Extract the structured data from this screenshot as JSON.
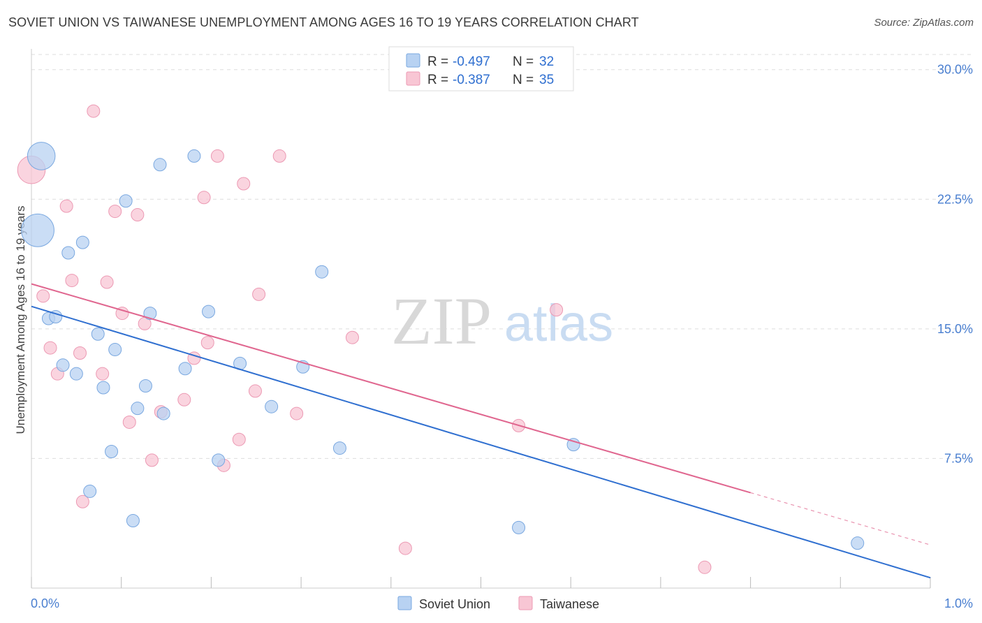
{
  "title": "SOVIET UNION VS TAIWANESE UNEMPLOYMENT AMONG AGES 16 TO 19 YEARS CORRELATION CHART",
  "source": "Source: ZipAtlas.com",
  "watermark": {
    "zip": "ZIP",
    "atlas": "atlas"
  },
  "legend": {
    "r_label": "R =",
    "n_label": "N =",
    "entries": [
      {
        "r": "-0.497",
        "n": "32"
      },
      {
        "r": "-0.387",
        "n": "35"
      }
    ]
  },
  "colors": {
    "soviet_fill": "#b8d2f2",
    "soviet_stroke": "#7aa8e0",
    "soviet_line": "#2f6fd0",
    "taiwan_fill": "#f8c6d4",
    "taiwan_stroke": "#ec99b3",
    "taiwan_line": "#e0668f",
    "grid": "#dddddd",
    "axis_text": "#4a7fd0"
  },
  "chart_data": {
    "type": "scatter",
    "title": "SOVIET UNION VS TAIWANESE UNEMPLOYMENT AMONG AGES 16 TO 19 YEARS CORRELATION CHART",
    "xlabel": "",
    "ylabel": "Unemployment Among Ages 16 to 19 years",
    "xlim": [
      0,
      1.0
    ],
    "ylim": [
      0,
      31.2
    ],
    "x_tick_labels": [
      "0.0%",
      "1.0%"
    ],
    "y_ticks": [
      7.5,
      15.0,
      22.5,
      30.0
    ],
    "y_tick_labels": [
      "7.5%",
      "15.0%",
      "22.5%",
      "30.0%"
    ],
    "series": [
      {
        "name": "Soviet Union",
        "r": -0.497,
        "n": 32,
        "trend": {
          "x0": 0.0,
          "y0": 16.3,
          "x1": 1.0,
          "y1": 0.6,
          "dashed_from": null
        },
        "points": [
          {
            "x": 0.011,
            "y": 25.0,
            "s": 2.2
          },
          {
            "x": 0.007,
            "y": 20.7,
            "s": 2.6
          },
          {
            "x": 0.143,
            "y": 24.5,
            "s": 1
          },
          {
            "x": 0.181,
            "y": 25.0,
            "s": 1
          },
          {
            "x": 0.105,
            "y": 22.4,
            "s": 1
          },
          {
            "x": 0.057,
            "y": 20.0,
            "s": 1
          },
          {
            "x": 0.041,
            "y": 19.4,
            "s": 1
          },
          {
            "x": 0.323,
            "y": 18.3,
            "s": 1
          },
          {
            "x": 0.019,
            "y": 15.6,
            "s": 1
          },
          {
            "x": 0.027,
            "y": 15.7,
            "s": 1
          },
          {
            "x": 0.132,
            "y": 15.9,
            "s": 1
          },
          {
            "x": 0.197,
            "y": 16.0,
            "s": 1
          },
          {
            "x": 0.074,
            "y": 14.7,
            "s": 1
          },
          {
            "x": 0.093,
            "y": 13.8,
            "s": 1
          },
          {
            "x": 0.035,
            "y": 12.9,
            "s": 1
          },
          {
            "x": 0.05,
            "y": 12.4,
            "s": 1
          },
          {
            "x": 0.171,
            "y": 12.7,
            "s": 1
          },
          {
            "x": 0.232,
            "y": 13.0,
            "s": 1
          },
          {
            "x": 0.302,
            "y": 12.8,
            "s": 1
          },
          {
            "x": 0.08,
            "y": 11.6,
            "s": 1
          },
          {
            "x": 0.127,
            "y": 11.7,
            "s": 1
          },
          {
            "x": 0.118,
            "y": 10.4,
            "s": 1
          },
          {
            "x": 0.147,
            "y": 10.1,
            "s": 1
          },
          {
            "x": 0.267,
            "y": 10.5,
            "s": 1
          },
          {
            "x": 0.089,
            "y": 7.9,
            "s": 1
          },
          {
            "x": 0.208,
            "y": 7.4,
            "s": 1
          },
          {
            "x": 0.343,
            "y": 8.1,
            "s": 1
          },
          {
            "x": 0.603,
            "y": 8.3,
            "s": 1
          },
          {
            "x": 0.065,
            "y": 5.6,
            "s": 1
          },
          {
            "x": 0.113,
            "y": 3.9,
            "s": 1
          },
          {
            "x": 0.542,
            "y": 3.5,
            "s": 1
          },
          {
            "x": 0.919,
            "y": 2.6,
            "s": 1
          }
        ]
      },
      {
        "name": "Taiwanese",
        "r": -0.387,
        "n": 35,
        "trend": {
          "x0": 0.0,
          "y0": 17.6,
          "x1": 1.0,
          "y1": 2.5,
          "dashed_from": 0.8
        },
        "points": [
          {
            "x": 0.0,
            "y": 24.2,
            "s": 2.2
          },
          {
            "x": 0.069,
            "y": 27.6,
            "s": 1
          },
          {
            "x": 0.207,
            "y": 25.0,
            "s": 1
          },
          {
            "x": 0.276,
            "y": 25.0,
            "s": 1
          },
          {
            "x": 0.236,
            "y": 23.4,
            "s": 1
          },
          {
            "x": 0.192,
            "y": 22.6,
            "s": 1
          },
          {
            "x": 0.039,
            "y": 22.1,
            "s": 1
          },
          {
            "x": 0.093,
            "y": 21.8,
            "s": 1
          },
          {
            "x": 0.118,
            "y": 21.6,
            "s": 1
          },
          {
            "x": 0.045,
            "y": 17.8,
            "s": 1
          },
          {
            "x": 0.084,
            "y": 17.7,
            "s": 1
          },
          {
            "x": 0.013,
            "y": 16.9,
            "s": 1
          },
          {
            "x": 0.253,
            "y": 17.0,
            "s": 1
          },
          {
            "x": 0.584,
            "y": 16.1,
            "s": 1
          },
          {
            "x": 0.101,
            "y": 15.9,
            "s": 1
          },
          {
            "x": 0.126,
            "y": 15.3,
            "s": 1
          },
          {
            "x": 0.357,
            "y": 14.5,
            "s": 1
          },
          {
            "x": 0.196,
            "y": 14.2,
            "s": 1
          },
          {
            "x": 0.021,
            "y": 13.9,
            "s": 1
          },
          {
            "x": 0.054,
            "y": 13.6,
            "s": 1
          },
          {
            "x": 0.181,
            "y": 13.3,
            "s": 1
          },
          {
            "x": 0.029,
            "y": 12.4,
            "s": 1
          },
          {
            "x": 0.079,
            "y": 12.4,
            "s": 1
          },
          {
            "x": 0.249,
            "y": 11.4,
            "s": 1
          },
          {
            "x": 0.17,
            "y": 10.9,
            "s": 1
          },
          {
            "x": 0.144,
            "y": 10.2,
            "s": 1
          },
          {
            "x": 0.295,
            "y": 10.1,
            "s": 1
          },
          {
            "x": 0.109,
            "y": 9.6,
            "s": 1
          },
          {
            "x": 0.542,
            "y": 9.4,
            "s": 1
          },
          {
            "x": 0.231,
            "y": 8.6,
            "s": 1
          },
          {
            "x": 0.134,
            "y": 7.4,
            "s": 1
          },
          {
            "x": 0.214,
            "y": 7.1,
            "s": 1
          },
          {
            "x": 0.057,
            "y": 5.0,
            "s": 1
          },
          {
            "x": 0.416,
            "y": 2.3,
            "s": 1
          },
          {
            "x": 0.749,
            "y": 1.2,
            "s": 1
          }
        ]
      }
    ]
  }
}
